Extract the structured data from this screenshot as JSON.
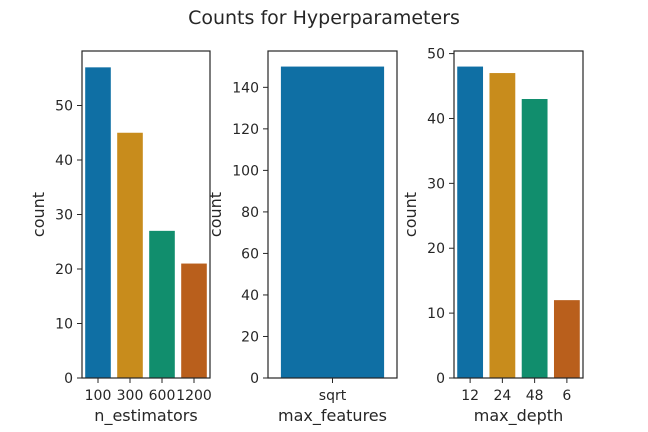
{
  "title": "Counts for Hyperparameters",
  "colors": {
    "blue": "#0f6fa4",
    "orange": "#c88c1c",
    "green": "#118e6d",
    "red": "#b95f1c"
  },
  "chart_data": [
    {
      "type": "bar",
      "categories": [
        "100",
        "300",
        "600",
        "1200"
      ],
      "values": [
        57,
        45,
        27,
        21
      ],
      "xlabel": "n_estimators",
      "ylabel": "count",
      "ylim": [
        0,
        60
      ],
      "yticks": [
        0,
        10,
        20,
        30,
        40,
        50
      ],
      "colors": [
        "#0f6fa4",
        "#c88c1c",
        "#118e6d",
        "#b95f1c"
      ]
    },
    {
      "type": "bar",
      "categories": [
        "sqrt"
      ],
      "values": [
        150
      ],
      "xlabel": "max_features",
      "ylabel": "count",
      "ylim": [
        0,
        157.5
      ],
      "yticks": [
        0,
        20,
        40,
        60,
        80,
        100,
        120,
        140
      ],
      "colors": [
        "#0f6fa4"
      ]
    },
    {
      "type": "bar",
      "categories": [
        "12",
        "24",
        "48",
        "6"
      ],
      "values": [
        48,
        47,
        43,
        12
      ],
      "xlabel": "max_depth",
      "ylabel": "count",
      "ylim": [
        0,
        50.4
      ],
      "yticks": [
        0,
        10,
        20,
        30,
        40,
        50
      ],
      "colors": [
        "#0f6fa4",
        "#c88c1c",
        "#118e6d",
        "#b95f1c"
      ]
    }
  ]
}
